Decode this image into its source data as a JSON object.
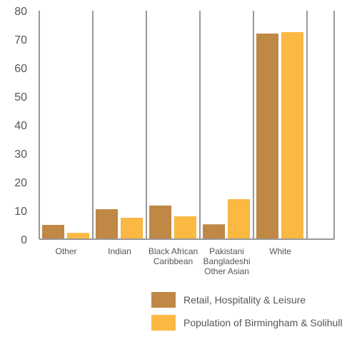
{
  "chart_data": {
    "type": "bar",
    "categories": [
      [
        "Other"
      ],
      [
        "Indian"
      ],
      [
        "Black African",
        "Caribbean"
      ],
      [
        "Pakistani",
        "Bangladeshi",
        "Other Asian"
      ],
      [
        "White"
      ]
    ],
    "series": [
      {
        "name": "Retail, Hospitality & Leisure",
        "color": "#bf8845",
        "values": [
          5,
          10.5,
          11.8,
          5.2,
          72
        ]
      },
      {
        "name": "Population of Birmingham & Solihull",
        "color": "#fbb842",
        "values": [
          2.2,
          7.5,
          8,
          14,
          72.5
        ]
      }
    ],
    "yticks": [
      0,
      10,
      20,
      30,
      40,
      50,
      60,
      70,
      80
    ],
    "ylim": [
      0,
      80
    ],
    "axis_color": "#999999",
    "legend_position": "bottom-right"
  }
}
